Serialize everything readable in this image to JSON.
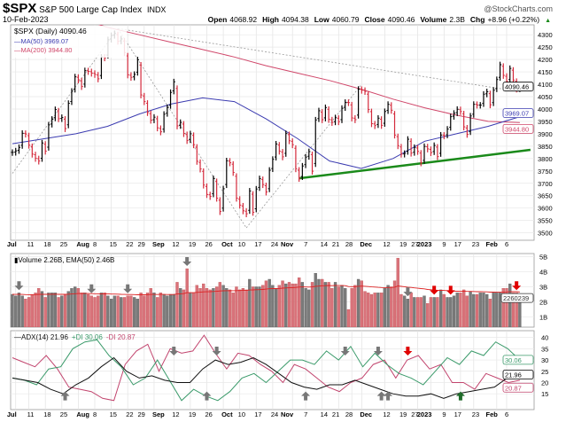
{
  "header": {
    "symbol": "$SPX",
    "name": "S&P 500 Large Cap Index",
    "exchange": "INDX",
    "watermark": "@StockCharts.com",
    "date": "10-Feb-2023",
    "ohlc": [
      {
        "label": "Open",
        "value": "4068.92"
      },
      {
        "label": "High",
        "value": "4094.38"
      },
      {
        "label": "Low",
        "value": "4060.79"
      },
      {
        "label": "Close",
        "value": "4090.46"
      },
      {
        "label": "Volume",
        "value": "2.3B"
      },
      {
        "label": "Chg",
        "value": "+8.96 (+0.22%)"
      }
    ]
  },
  "colors": {
    "up": "#000000",
    "down": "#d42a3c",
    "ma50": "#3b3bb0",
    "ma200": "#d0476a",
    "trend": "#1a8a1a",
    "plus_di": "#3a9a6a",
    "minus_di": "#c2456e",
    "adx": "#111111",
    "vol_up": "#7a7a7a",
    "vol_down": "#d9727a",
    "arrow_gray": "#777777",
    "arrow_red": "#e00000",
    "arrow_green": "#1f6b2a"
  },
  "chart_data": [
    {
      "type": "ohlc",
      "legend": [
        "$SPX (Daily) 4090.46",
        "MA(50) 3969.07",
        "MA(200) 3944.80"
      ],
      "ylim": [
        3470,
        4340
      ],
      "yticks": [
        3500,
        3550,
        3600,
        3650,
        3700,
        3750,
        3800,
        3850,
        3900,
        3950,
        4000,
        4050,
        4100,
        4150,
        4200,
        4250,
        4300
      ],
      "last_labels": {
        "close": "4090.46",
        "ma50": "3969.07",
        "ma200": "3944.80"
      },
      "months": [
        {
          "month": "Jul",
          "days": [
            1,
            5,
            6,
            7,
            8,
            11,
            12,
            13,
            14,
            15,
            18,
            19,
            20,
            21,
            22,
            25,
            26,
            27,
            28,
            29
          ],
          "closes": [
            3825,
            3831,
            3845,
            3902,
            3899,
            3854,
            3818,
            3801,
            3790,
            3863,
            3830,
            3936,
            3959,
            3998,
            3961,
            3966,
            3921,
            4023,
            4072,
            4130
          ]
        },
        {
          "month": "Aug",
          "days": [
            1,
            2,
            3,
            4,
            5,
            8,
            9,
            10,
            11,
            12,
            15,
            16,
            17,
            18,
            19,
            22,
            23,
            24,
            25,
            26,
            29,
            30,
            31
          ],
          "closes": [
            4118,
            4091,
            4155,
            4152,
            4145,
            4140,
            4122,
            4210,
            4207,
            4280,
            4297,
            4305,
            4274,
            4283,
            4228,
            4138,
            4128,
            4140,
            4199,
            4057,
            4030,
            3986,
            3955
          ]
        },
        {
          "month": "Sep",
          "days": [
            1,
            2,
            6,
            7,
            8,
            9,
            12,
            13,
            14,
            15,
            16,
            19,
            20,
            21,
            22,
            23,
            26,
            27,
            28,
            29,
            30
          ],
          "closes": [
            3967,
            3924,
            3908,
            3979,
            4006,
            4067,
            4110,
            3932,
            3946,
            3901,
            3873,
            3900,
            3856,
            3789,
            3758,
            3693,
            3655,
            3647,
            3719,
            3640,
            3586
          ]
        },
        {
          "month": "Oct",
          "days": [
            3,
            4,
            5,
            6,
            7,
            10,
            11,
            12,
            13,
            14,
            17,
            18,
            19,
            20,
            21,
            24,
            25,
            26,
            27,
            28,
            31
          ],
          "closes": [
            3678,
            3791,
            3783,
            3744,
            3640,
            3612,
            3589,
            3577,
            3669,
            3583,
            3677,
            3719,
            3695,
            3665,
            3753,
            3797,
            3859,
            3830,
            3807,
            3901,
            3872
          ]
        },
        {
          "month": "Nov",
          "days": [
            1,
            2,
            3,
            4,
            7,
            8,
            9,
            10,
            11,
            14,
            15,
            16,
            17,
            18,
            21,
            22,
            23,
            25,
            28,
            29,
            30
          ],
          "closes": [
            3856,
            3759,
            3720,
            3770,
            3806,
            3828,
            3749,
            3956,
            3993,
            3957,
            4006,
            3958,
            3946,
            3965,
            3949,
            4003,
            4027,
            4026,
            3964,
            3957,
            4080
          ]
        },
        {
          "month": "Dec",
          "days": [
            1,
            2,
            5,
            6,
            7,
            8,
            9,
            12,
            13,
            14,
            15,
            16,
            19,
            20,
            21,
            22,
            23,
            27,
            28,
            29,
            30
          ],
          "closes": [
            4076,
            4071,
            3998,
            3941,
            3933,
            3963,
            3934,
            3990,
            4019,
            3995,
            3895,
            3852,
            3818,
            3821,
            3878,
            3822,
            3845,
            3829,
            3783,
            3849,
            3839
          ]
        },
        {
          "month": "Jan",
          "days": [
            3,
            4,
            5,
            6,
            9,
            10,
            11,
            12,
            13,
            17,
            18,
            19,
            20,
            23,
            24,
            25,
            26,
            27,
            30,
            31
          ],
          "closes": [
            3824,
            3853,
            3808,
            3895,
            3892,
            3919,
            3969,
            3983,
            3999,
            3990,
            3928,
            3898,
            3972,
            4019,
            4016,
            4016,
            4060,
            4070,
            4017,
            4076
          ]
        },
        {
          "month": "Feb",
          "days": [
            1,
            2,
            3,
            6,
            7,
            8,
            9,
            10
          ],
          "closes": [
            4119,
            4179,
            4136,
            4111,
            4164,
            4117,
            4081,
            4090
          ]
        }
      ],
      "ma50": [
        3860,
        3880,
        3900,
        3930,
        3980,
        4020,
        4045,
        4030,
        3960,
        3880,
        3790,
        3760,
        3800,
        3870,
        3900,
        3930,
        3969
      ],
      "ma200": [
        4450,
        4410,
        4370,
        4330,
        4300,
        4270,
        4240,
        4210,
        4175,
        4145,
        4115,
        4080,
        4040,
        4005,
        3975,
        3950,
        3945
      ],
      "trendline": {
        "from": [
          "Nov",
          3,
          3720
        ],
        "to": [
          "Feb",
          10,
          3835
        ]
      }
    },
    {
      "type": "bar",
      "legend": "Volume 2.26B, EMA(50) 2.46B",
      "ylim": [
        0.33,
        5.2
      ],
      "yticks": [
        {
          "v": 1,
          "label": "1B"
        },
        {
          "v": 2,
          "label": "2B"
        },
        {
          "v": 3,
          "label": "3B"
        },
        {
          "v": 4,
          "label": "4B"
        },
        {
          "v": 5,
          "label": "5B"
        }
      ],
      "last_label": "2260239",
      "values_billions": [
        2.5,
        2.4,
        2.6,
        2.4,
        2.2,
        2.3,
        2.5,
        2.6,
        2.9,
        2.7,
        2.3,
        2.6,
        2.6,
        2.6,
        2.3,
        2.4,
        2.5,
        2.7,
        2.9,
        3.0,
        2.9,
        2.6,
        2.6,
        2.5,
        2.4,
        2.3,
        2.4,
        2.6,
        2.6,
        2.4,
        2.2,
        2.4,
        2.4,
        2.3,
        2.3,
        2.4,
        2.4,
        2.3,
        2.2,
        2.6,
        2.4,
        2.6,
        2.9,
        2.6,
        2.3,
        2.6,
        2.5,
        2.4,
        2.5,
        2.5,
        3.3,
        2.9,
        2.8,
        4.2,
        2.6,
        2.6,
        3.1,
        2.9,
        3.2,
        2.9,
        2.8,
        2.9,
        3.0,
        3.3,
        3.1,
        2.9,
        2.8,
        2.6,
        3.0,
        2.8,
        2.9,
        2.8,
        3.5,
        3.0,
        3.0,
        3.0,
        3.1,
        3.4,
        3.5,
        3.1,
        2.9,
        3.1,
        3.4,
        3.2,
        3.3,
        3.2,
        3.2,
        3.6,
        3.3,
        2.9,
        2.8,
        3.3,
        3.9,
        3.5,
        3.5,
        3.3,
        3.3,
        2.9,
        3.3,
        3.0,
        3.1,
        2.9,
        1.5,
        2.9,
        3.1,
        3.5,
        3.4,
        2.7,
        2.6,
        2.5,
        2.6,
        2.6,
        2.6,
        2.9,
        3.1,
        3.0,
        3.4,
        4.9,
        2.5,
        2.4,
        2.2,
        2.6,
        2.3,
        2.3,
        2.3,
        2.4,
        1.9,
        2.3,
        2.3,
        2.3,
        2.8,
        2.5,
        2.3,
        2.3,
        2.4,
        2.6,
        2.6,
        2.8,
        2.4,
        2.7,
        2.5,
        2.5,
        2.6,
        2.6,
        2.5,
        2.2,
        2.6,
        2.6,
        2.6,
        2.9,
        2.9,
        3.2,
        2.6,
        2.6,
        2.3
      ],
      "arrows": [
        [
          2,
          "down",
          "gray"
        ],
        [
          24,
          "down",
          "gray"
        ],
        [
          35,
          "down",
          "gray"
        ],
        [
          53,
          "down",
          "gray"
        ],
        [
          120,
          "down",
          "gray"
        ],
        [
          128,
          "down",
          "red"
        ],
        [
          133,
          "down",
          "red"
        ],
        [
          153,
          "down",
          "red"
        ]
      ]
    },
    {
      "type": "line",
      "legend": {
        "adx": "ADX(14) 21.96",
        "plus": "+DI 30.06",
        "minus": "-DI 20.87"
      },
      "ylim": [
        8,
        43
      ],
      "yticks": [
        15,
        20,
        25,
        30,
        35,
        40
      ],
      "last_labels": {
        "plus": "30.06",
        "adx": "21.96",
        "minus": "20.87"
      },
      "adx": [
        22,
        21,
        20,
        17,
        15,
        19,
        22,
        27,
        31,
        25,
        22,
        23,
        21,
        20,
        20,
        26,
        30,
        28,
        29,
        31,
        28,
        24,
        20,
        18,
        17,
        19,
        19,
        21,
        19,
        17,
        15,
        14,
        14,
        15,
        13,
        15,
        16,
        17,
        18,
        22,
        22
      ],
      "plus_di": [
        22,
        21,
        19,
        26,
        27,
        35,
        38,
        39,
        32,
        27,
        19,
        22,
        30,
        21,
        12,
        17,
        14,
        12,
        16,
        22,
        24,
        20,
        25,
        30,
        30,
        28,
        34,
        30,
        36,
        27,
        33,
        28,
        24,
        22,
        19,
        25,
        31,
        28,
        34,
        32,
        38,
        35,
        30
      ],
      "minus_di": [
        31,
        29,
        27,
        32,
        26,
        18,
        17,
        16,
        13,
        12,
        28,
        34,
        37,
        25,
        35,
        33,
        34,
        41,
        33,
        26,
        33,
        32,
        28,
        25,
        20,
        28,
        26,
        22,
        18,
        16,
        20,
        22,
        28,
        30,
        22,
        30,
        32,
        26,
        28,
        20,
        20,
        17,
        24,
        22,
        20,
        21
      ],
      "arrows": [
        [
          16,
          "up",
          "gray"
        ],
        [
          49,
          "down",
          "gray"
        ],
        [
          59,
          "up",
          "gray"
        ],
        [
          62,
          "down",
          "gray"
        ],
        [
          89,
          "up",
          "gray"
        ],
        [
          101,
          "down",
          "gray"
        ],
        [
          111,
          "down",
          "gray"
        ],
        [
          112,
          "up",
          "gray"
        ],
        [
          114,
          "up",
          "gray"
        ],
        [
          120,
          "down",
          "red"
        ],
        [
          136,
          "up",
          "green"
        ]
      ]
    }
  ],
  "x_ticks": [
    {
      "label": "Jul",
      "m": "Jul",
      "d": 5,
      "bold": true
    },
    {
      "label": "11",
      "m": "Jul",
      "d": 11
    },
    {
      "label": "18",
      "m": "Jul",
      "d": 18
    },
    {
      "label": "25",
      "m": "Jul",
      "d": 25
    },
    {
      "label": "Aug",
      "m": "Aug",
      "d": 1,
      "bold": true
    },
    {
      "label": "8",
      "m": "Aug",
      "d": 8
    },
    {
      "label": "15",
      "m": "Aug",
      "d": 15
    },
    {
      "label": "22",
      "m": "Aug",
      "d": 22
    },
    {
      "label": "29",
      "m": "Aug",
      "d": 29
    },
    {
      "label": "Sep",
      "m": "Sep",
      "d": 1,
      "bold": true
    },
    {
      "label": "12",
      "m": "Sep",
      "d": 12
    },
    {
      "label": "19",
      "m": "Sep",
      "d": 19
    },
    {
      "label": "26",
      "m": "Sep",
      "d": 26
    },
    {
      "label": "Oct",
      "m": "Oct",
      "d": 3,
      "bold": true
    },
    {
      "label": "10",
      "m": "Oct",
      "d": 10
    },
    {
      "label": "17",
      "m": "Oct",
      "d": 17
    },
    {
      "label": "24",
      "m": "Oct",
      "d": 24
    },
    {
      "label": "Nov",
      "m": "Nov",
      "d": 1,
      "bold": true
    },
    {
      "label": "7",
      "m": "Nov",
      "d": 7
    },
    {
      "label": "14",
      "m": "Nov",
      "d": 14
    },
    {
      "label": "21",
      "m": "Nov",
      "d": 21
    },
    {
      "label": "28",
      "m": "Nov",
      "d": 28
    },
    {
      "label": "Dec",
      "m": "Dec",
      "d": 1,
      "bold": true
    },
    {
      "label": "12",
      "m": "Dec",
      "d": 12
    },
    {
      "label": "19",
      "m": "Dec",
      "d": 19
    },
    {
      "label": "27",
      "m": "Dec",
      "d": 27
    },
    {
      "label": "2023",
      "m": "Jan",
      "d": 3,
      "bold": true
    },
    {
      "label": "9",
      "m": "Jan",
      "d": 9
    },
    {
      "label": "17",
      "m": "Jan",
      "d": 17
    },
    {
      "label": "23",
      "m": "Jan",
      "d": 23
    },
    {
      "label": "Feb",
      "m": "Feb",
      "d": 1,
      "bold": true
    },
    {
      "label": "6",
      "m": "Feb",
      "d": 6
    }
  ]
}
